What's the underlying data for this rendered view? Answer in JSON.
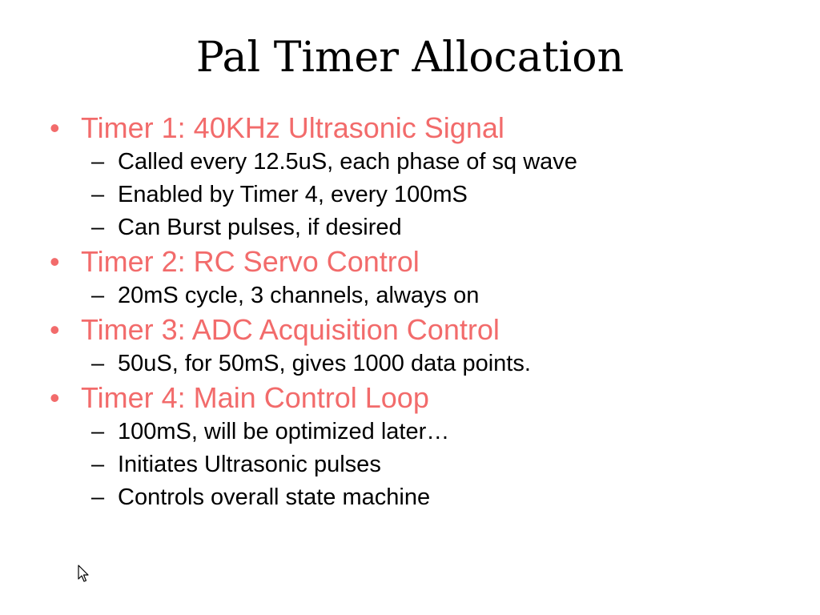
{
  "title": "Pal Timer Allocation",
  "bullet_glyph": "•",
  "dash_glyph": "–",
  "items": [
    {
      "label": "Timer 1: 40KHz Ultrasonic Signal",
      "subs": [
        "Called every 12.5uS, each phase of sq wave",
        "Enabled by Timer 4, every 100mS",
        "Can Burst pulses, if desired"
      ]
    },
    {
      "label": "Timer 2: RC Servo Control",
      "subs": [
        "20mS cycle, 3 channels, always on"
      ]
    },
    {
      "label": "Timer 3: ADC Acquisition Control",
      "subs": [
        "50uS, for 50mS, gives 1000 data points."
      ]
    },
    {
      "label": "Timer 4: Main Control Loop",
      "subs": [
        "100mS, will be optimized later…",
        "Initiates Ultrasonic pulses",
        "Controls overall state machine"
      ]
    }
  ],
  "colors": {
    "bullet_text": "#f26b6b",
    "sub_text": "#000000",
    "background": "#ffffff"
  },
  "icons": {
    "cursor": "mouse-pointer-icon"
  }
}
